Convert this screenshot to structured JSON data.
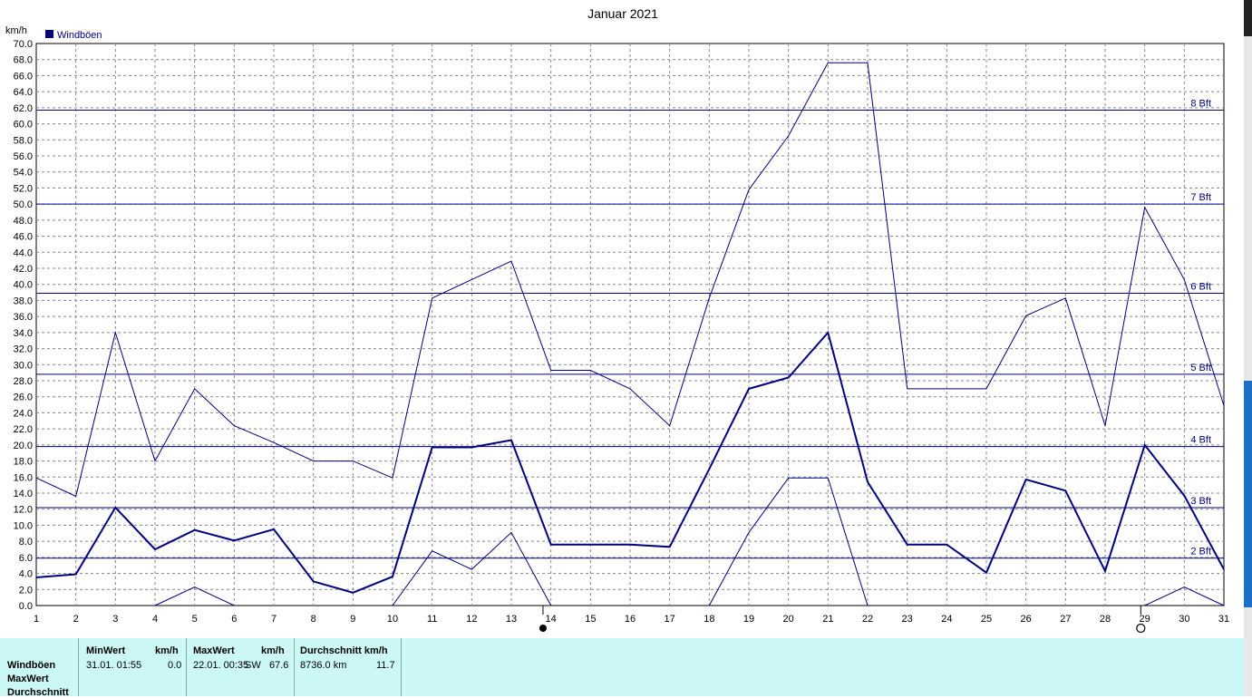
{
  "title": "Januar 2021",
  "unit_label": "km/h",
  "legend": {
    "label": "Windböen",
    "color": "#00007f"
  },
  "stats": {
    "row_labels": [
      "Windböen",
      "MaxWert",
      "Durchschnitt"
    ],
    "min_header": "MinWert",
    "min_unit": "km/h",
    "min_when": "31.01.  01:55",
    "min_value": "0.0",
    "max_header": "MaxWert",
    "max_unit": "km/h",
    "max_when": "22.01.  00:35",
    "max_dir": "SW",
    "max_value": "67.6",
    "avg_header": "Durchschnitt km/h",
    "avg_dist": "8736.0 km",
    "avg_value": "11.7"
  },
  "chart_data": {
    "type": "line",
    "title": "Januar 2021",
    "ylabel": "km/h",
    "ylim": [
      0,
      70
    ],
    "ytick_step": 2,
    "xlim": [
      1,
      31
    ],
    "categories": [
      1,
      2,
      3,
      4,
      5,
      6,
      7,
      8,
      9,
      10,
      11,
      12,
      13,
      14,
      15,
      16,
      17,
      18,
      19,
      20,
      21,
      22,
      23,
      24,
      25,
      26,
      27,
      28,
      29,
      30,
      31
    ],
    "grid": true,
    "legend_position": "top-left",
    "series": [
      {
        "name": "Windböen",
        "role": "max",
        "color": "#00007f",
        "values": [
          15.9,
          13.6,
          34.0,
          18.0,
          27.0,
          22.4,
          20.3,
          18.0,
          18.0,
          15.9,
          38.3,
          40.6,
          42.9,
          29.3,
          29.3,
          27.0,
          22.4,
          38.3,
          51.8,
          58.5,
          67.6,
          67.6,
          27.0,
          27.0,
          27.0,
          36.1,
          38.3,
          22.4,
          49.6,
          40.6,
          24.9
        ]
      },
      {
        "name": "",
        "role": "avg",
        "color": "#00007f",
        "values": [
          3.5,
          3.9,
          12.2,
          7.0,
          9.4,
          8.1,
          9.5,
          3.0,
          1.6,
          3.6,
          19.7,
          19.7,
          20.6,
          7.6,
          7.6,
          7.6,
          7.3,
          17.0,
          27.0,
          28.4,
          34.0,
          15.4,
          7.6,
          7.6,
          4.1,
          15.7,
          14.3,
          4.3,
          20.0,
          13.7,
          4.5
        ]
      },
      {
        "name": "",
        "role": "min",
        "color": "#00007f",
        "values": [
          null,
          null,
          null,
          0.0,
          2.3,
          0.0,
          null,
          null,
          null,
          0.0,
          6.8,
          4.5,
          9.1,
          0.0,
          null,
          null,
          null,
          0.0,
          9.1,
          15.9,
          15.9,
          0.0,
          null,
          null,
          null,
          null,
          null,
          null,
          0.0,
          2.3,
          0.0
        ]
      }
    ],
    "reference_lines": [
      {
        "label": "2 Bft",
        "y": 5.9
      },
      {
        "label": "3 Bft",
        "y": 12.2
      },
      {
        "label": "4 Bft",
        "y": 19.8
      },
      {
        "label": "5 Bft",
        "y": 28.8
      },
      {
        "label": "6 Bft",
        "y": 38.9
      },
      {
        "label": "7 Bft",
        "y": 50.0
      },
      {
        "label": "8 Bft",
        "y": 61.7
      }
    ],
    "markers": [
      {
        "day": 13.8,
        "symbol": "full-moon-dot"
      },
      {
        "day": 28.9,
        "symbol": "new-moon-circle"
      }
    ]
  }
}
